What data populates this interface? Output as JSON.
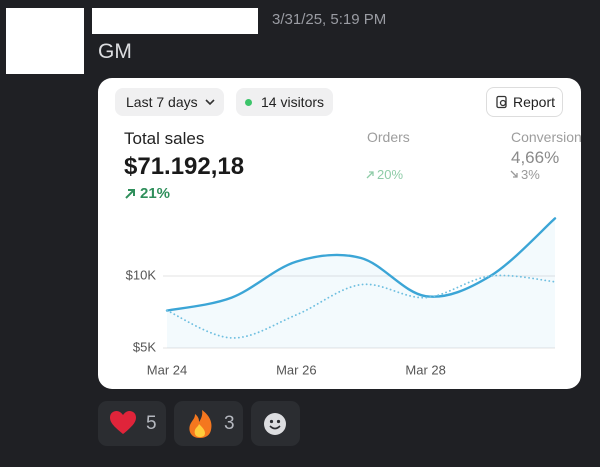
{
  "header": {
    "timestamp": "3/31/25, 5:19 PM"
  },
  "message": {
    "text": "GM"
  },
  "card": {
    "range_button": "Last 7 days",
    "visitors": "14 visitors",
    "report_button": "Report",
    "metrics": [
      {
        "label": "Total sales",
        "value": "$71.192,18",
        "change": "21%"
      },
      {
        "label": "Orders",
        "change": "20%"
      },
      {
        "label": "Conversion",
        "value": "4,66%",
        "change": "3%"
      }
    ]
  },
  "chart_data": {
    "type": "line",
    "categories": [
      "Mar 24",
      null,
      "Mar 26",
      null,
      "Mar 28",
      null,
      null
    ],
    "series": [
      {
        "color": "#3ba5d6",
        "style": "solid",
        "values": [
          7600,
          8500,
          11000,
          11250,
          8600,
          10000,
          14000
        ]
      },
      {
        "color": "#6fbfe0",
        "style": "dotted",
        "values": [
          7600,
          5700,
          7300,
          9400,
          8500,
          10000,
          9600
        ]
      }
    ],
    "ylim": [
      5000,
      15000
    ],
    "yticks": [
      {
        "value": 5000,
        "label": "$5K"
      },
      {
        "value": 10000,
        "label": "$10K"
      }
    ],
    "grid": true
  }
}
